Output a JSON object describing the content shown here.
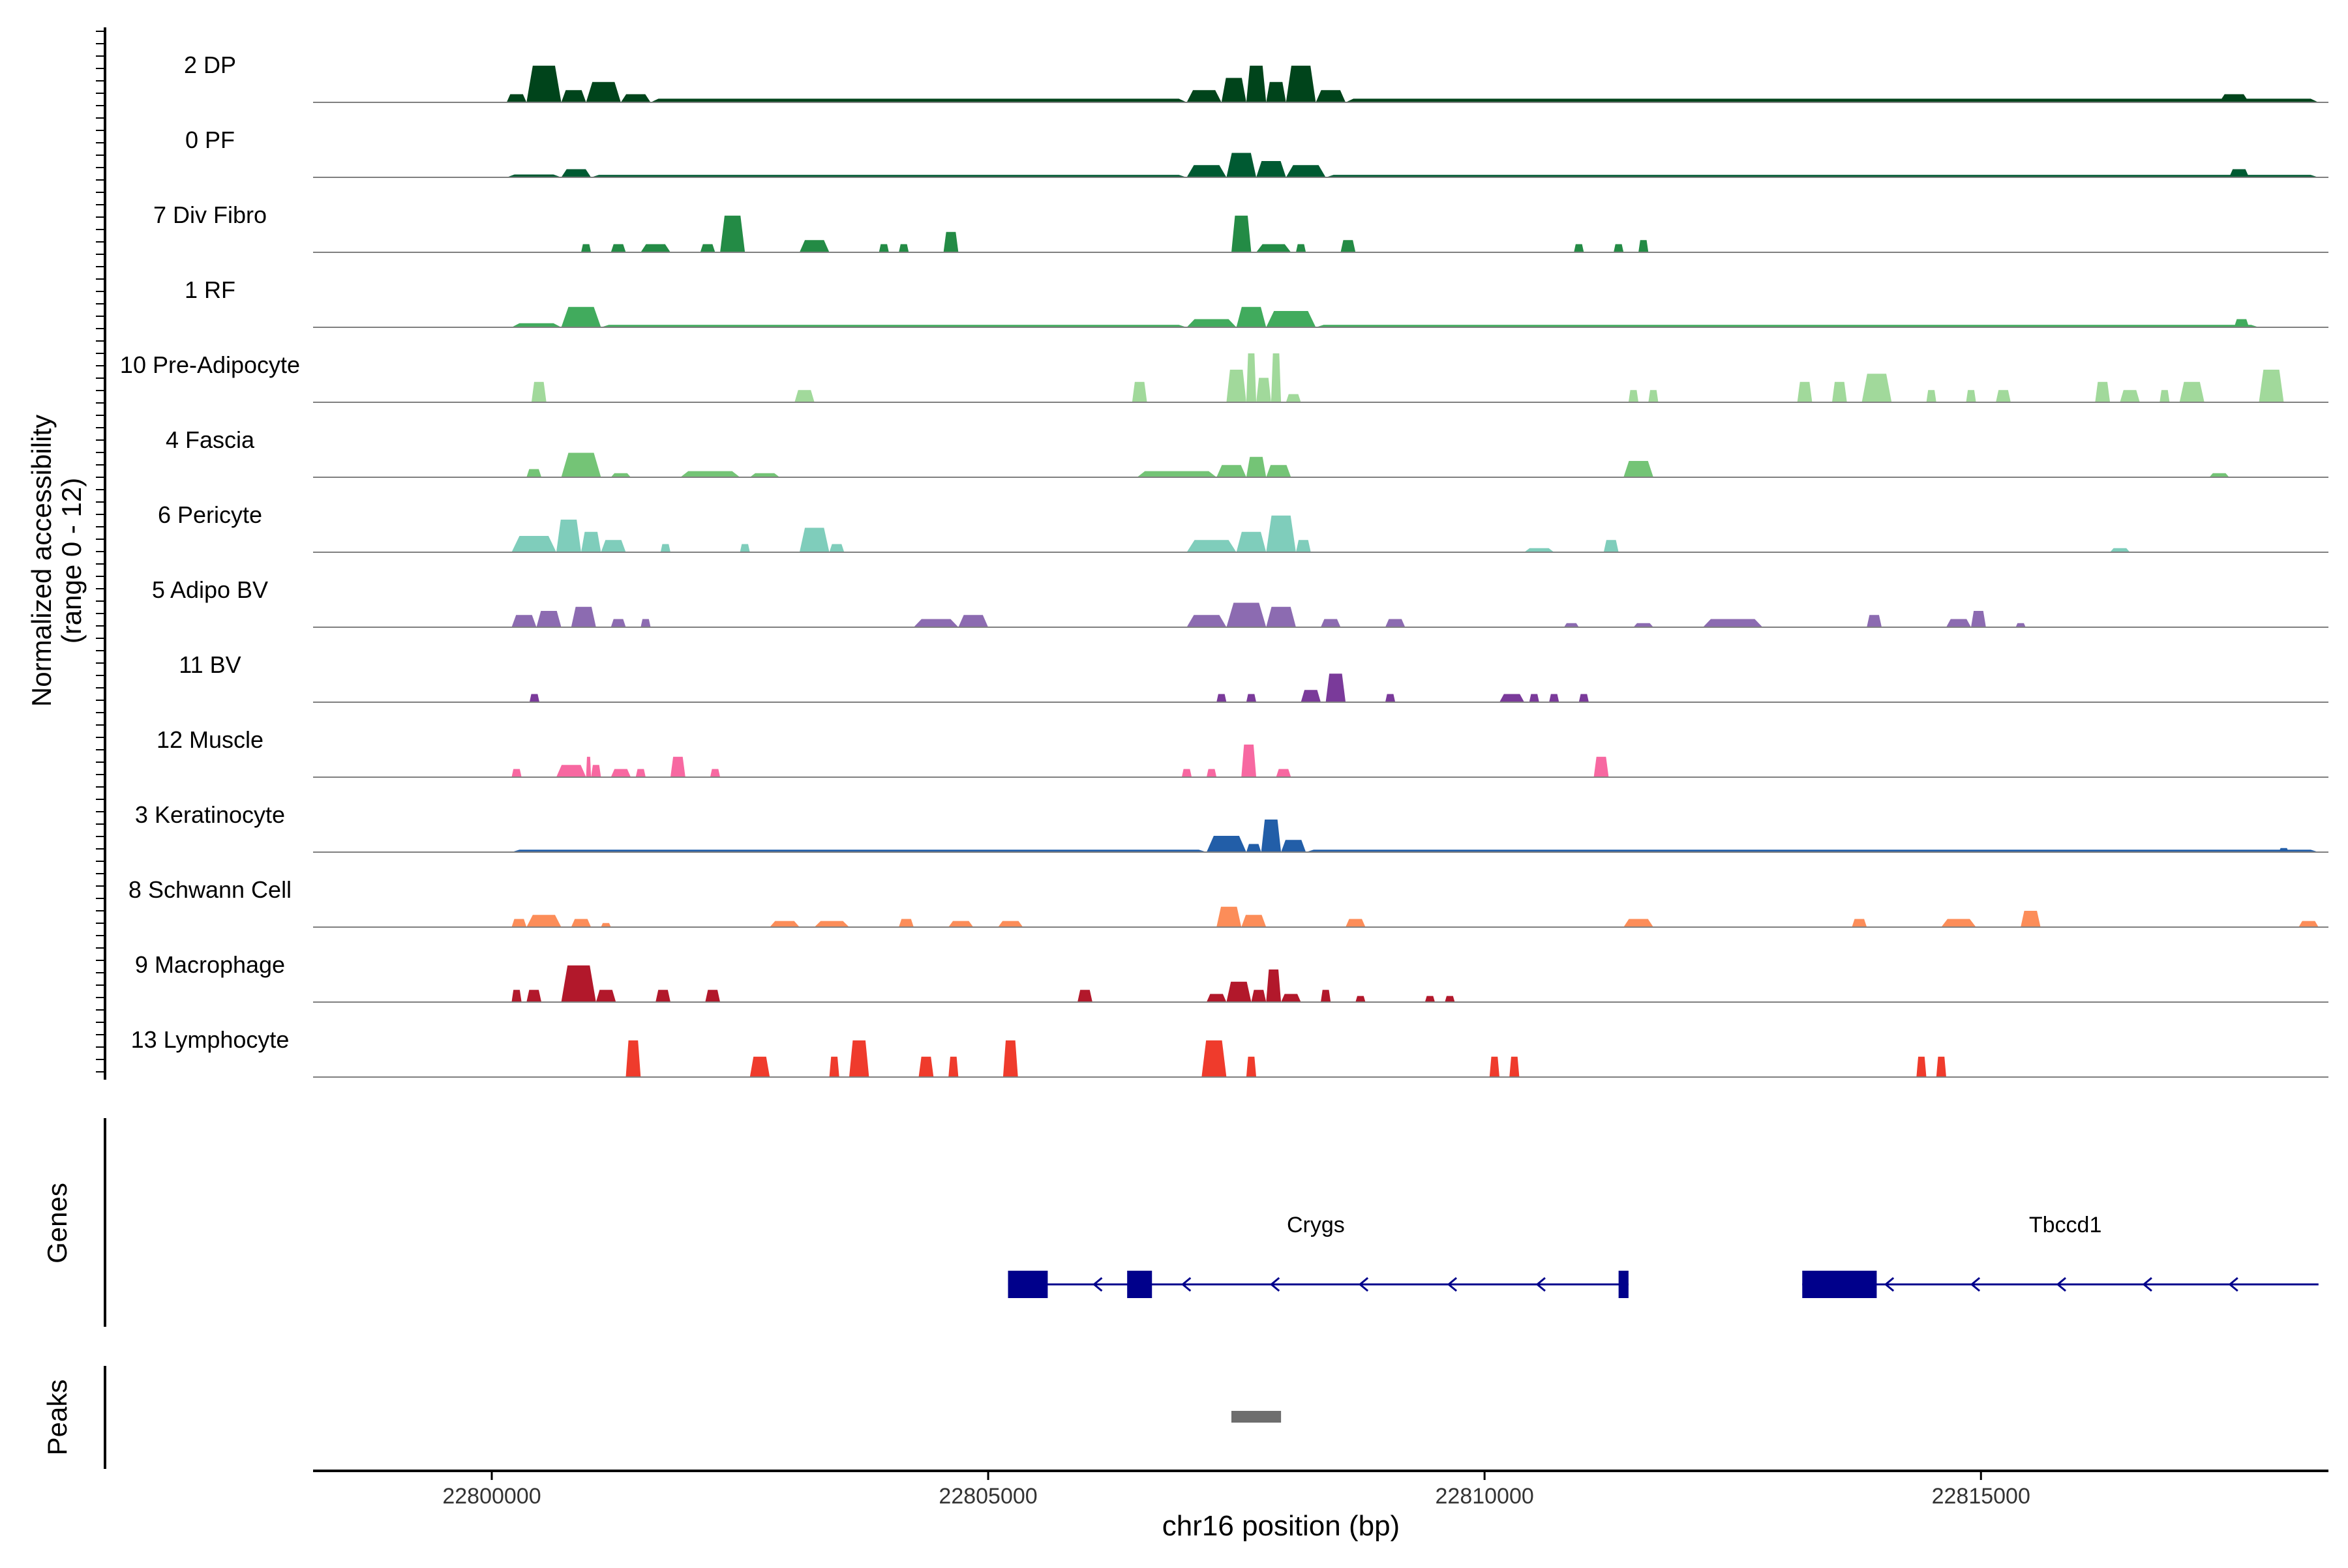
{
  "chart_data": {
    "type": "area",
    "title": "",
    "ylabel": "Normalized accessibility",
    "ylabel_range": "(range 0 - 12)",
    "yrange": [
      0,
      12
    ],
    "xlabel": "chr16 position (bp)",
    "xlim": [
      22798200,
      22818500
    ],
    "xticks": [
      22800000,
      22805000,
      22810000,
      22815000
    ],
    "xtick_labels": [
      "22800000",
      "22805000",
      "22810000",
      "22815000"
    ],
    "tracks": [
      {
        "name": "2 DP",
        "color": "#00441b",
        "peaks": [
          [
            22800150,
            22800350,
            2
          ],
          [
            22800350,
            22800700,
            9
          ],
          [
            22800700,
            22800950,
            3
          ],
          [
            22800950,
            22801300,
            5
          ],
          [
            22801300,
            22801600,
            2
          ],
          [
            22801600,
            22807000,
            0.9
          ],
          [
            22807000,
            22807350,
            3
          ],
          [
            22807350,
            22807600,
            6
          ],
          [
            22807600,
            22807800,
            9
          ],
          [
            22807800,
            22808000,
            5
          ],
          [
            22808000,
            22808300,
            9
          ],
          [
            22808300,
            22808600,
            3
          ],
          [
            22808600,
            22818400,
            0.9
          ],
          [
            22817400,
            22817700,
            2
          ]
        ]
      },
      {
        "name": "0 PF",
        "color": "#005a32",
        "peaks": [
          [
            22800150,
            22800700,
            0.7
          ],
          [
            22800700,
            22801000,
            2
          ],
          [
            22801000,
            22807000,
            0.6
          ],
          [
            22807000,
            22807400,
            3
          ],
          [
            22807400,
            22807700,
            6
          ],
          [
            22807700,
            22808000,
            4
          ],
          [
            22808000,
            22808400,
            3
          ],
          [
            22808400,
            22818400,
            0.6
          ],
          [
            22817500,
            22817700,
            2
          ]
        ]
      },
      {
        "name": "7 Div Fibro",
        "color": "#238b45",
        "peaks": [
          [
            22800900,
            22801000,
            2
          ],
          [
            22801200,
            22801350,
            2
          ],
          [
            22801500,
            22801800,
            2
          ],
          [
            22802100,
            22802250,
            2
          ],
          [
            22802300,
            22802550,
            9
          ],
          [
            22803100,
            22803400,
            3
          ],
          [
            22803900,
            22804000,
            2
          ],
          [
            22804100,
            22804200,
            2
          ],
          [
            22804550,
            22804700,
            5
          ],
          [
            22807450,
            22807650,
            9
          ],
          [
            22807700,
            22808050,
            2
          ],
          [
            22808100,
            22808200,
            2
          ],
          [
            22808550,
            22808700,
            3
          ],
          [
            22810900,
            22811000,
            2
          ],
          [
            22811300,
            22811400,
            2
          ],
          [
            22811550,
            22811650,
            3
          ]
        ]
      },
      {
        "name": "1 RF",
        "color": "#41ab5d",
        "peaks": [
          [
            22800200,
            22800700,
            1
          ],
          [
            22800700,
            22801100,
            5
          ],
          [
            22801100,
            22807000,
            0.6
          ],
          [
            22807000,
            22807500,
            2
          ],
          [
            22807500,
            22807800,
            5
          ],
          [
            22807800,
            22808300,
            4
          ],
          [
            22808300,
            22817800,
            0.6
          ],
          [
            22817550,
            22817700,
            2
          ]
        ]
      },
      {
        "name": "10 Pre-Adipocyte",
        "color": "#a1d99b",
        "peaks": [
          [
            22800400,
            22800550,
            5
          ],
          [
            22803050,
            22803250,
            3
          ],
          [
            22806450,
            22806600,
            5
          ],
          [
            22807400,
            22807600,
            8
          ],
          [
            22807600,
            22807700,
            12
          ],
          [
            22807700,
            22807850,
            6
          ],
          [
            22807850,
            22807950,
            12
          ],
          [
            22808000,
            22808150,
            2
          ],
          [
            22811450,
            22811550,
            3
          ],
          [
            22811650,
            22811750,
            3
          ],
          [
            22813150,
            22813300,
            5
          ],
          [
            22813500,
            22813650,
            5
          ],
          [
            22813800,
            22814100,
            7
          ],
          [
            22814450,
            22814550,
            3
          ],
          [
            22814850,
            22814950,
            3
          ],
          [
            22815150,
            22815300,
            3
          ],
          [
            22816150,
            22816300,
            5
          ],
          [
            22816400,
            22816600,
            3
          ],
          [
            22816800,
            22816900,
            3
          ],
          [
            22817000,
            22817250,
            5
          ],
          [
            22817800,
            22818050,
            8
          ]
        ]
      },
      {
        "name": "4 Fascia",
        "color": "#74c476",
        "peaks": [
          [
            22800350,
            22800500,
            2
          ],
          [
            22800700,
            22801100,
            6
          ],
          [
            22801200,
            22801400,
            1
          ],
          [
            22801900,
            22802500,
            1.5
          ],
          [
            22802600,
            22802900,
            1
          ],
          [
            22806500,
            22807300,
            1.5
          ],
          [
            22807300,
            22807600,
            3
          ],
          [
            22807600,
            22807800,
            5
          ],
          [
            22807800,
            22808050,
            3
          ],
          [
            22811400,
            22811700,
            4
          ],
          [
            22817300,
            22817500,
            1
          ]
        ]
      },
      {
        "name": "6 Pericyte",
        "color": "#7fcdbb",
        "peaks": [
          [
            22800200,
            22800650,
            4
          ],
          [
            22800650,
            22800900,
            8
          ],
          [
            22800900,
            22801100,
            5
          ],
          [
            22801100,
            22801350,
            3
          ],
          [
            22801700,
            22801800,
            2
          ],
          [
            22802500,
            22802600,
            2
          ],
          [
            22803100,
            22803400,
            6
          ],
          [
            22803400,
            22803550,
            2
          ],
          [
            22807000,
            22807500,
            3
          ],
          [
            22807500,
            22807800,
            5
          ],
          [
            22807800,
            22808100,
            9
          ],
          [
            22808100,
            22808250,
            3
          ],
          [
            22810400,
            22810700,
            1
          ],
          [
            22811200,
            22811350,
            3
          ],
          [
            22816300,
            22816500,
            1
          ]
        ]
      },
      {
        "name": "5 Adipo BV",
        "color": "#8c6bb1",
        "peaks": [
          [
            22800200,
            22800450,
            3
          ],
          [
            22800450,
            22800700,
            4
          ],
          [
            22800800,
            22801050,
            5
          ],
          [
            22801200,
            22801350,
            2
          ],
          [
            22801500,
            22801600,
            2
          ],
          [
            22804250,
            22804700,
            2
          ],
          [
            22804700,
            22805000,
            3
          ],
          [
            22807000,
            22807400,
            3
          ],
          [
            22807400,
            22807800,
            6
          ],
          [
            22807800,
            22808100,
            5
          ],
          [
            22808350,
            22808550,
            2
          ],
          [
            22809000,
            22809200,
            2
          ],
          [
            22810800,
            22810950,
            1
          ],
          [
            22811500,
            22811700,
            1
          ],
          [
            22812200,
            22812800,
            2
          ],
          [
            22813850,
            22814000,
            3
          ],
          [
            22814650,
            22814900,
            2
          ],
          [
            22814900,
            22815050,
            4
          ],
          [
            22815350,
            22815450,
            1
          ]
        ]
      },
      {
        "name": "11 BV",
        "color": "#7a3a9a",
        "peaks": [
          [
            22800380,
            22800480,
            2
          ],
          [
            22807300,
            22807400,
            2
          ],
          [
            22807600,
            22807700,
            2
          ],
          [
            22808150,
            22808350,
            3
          ],
          [
            22808400,
            22808600,
            7
          ],
          [
            22809000,
            22809100,
            2
          ],
          [
            22810150,
            22810400,
            2
          ],
          [
            22810450,
            22810550,
            2
          ],
          [
            22810650,
            22810750,
            2
          ],
          [
            22810950,
            22811050,
            2
          ]
        ]
      },
      {
        "name": "12 Muscle",
        "color": "#f768a1",
        "peaks": [
          [
            22800200,
            22800300,
            2
          ],
          [
            22800650,
            22800950,
            3
          ],
          [
            22800950,
            22801000,
            5
          ],
          [
            22801000,
            22801100,
            3
          ],
          [
            22801200,
            22801400,
            2
          ],
          [
            22801450,
            22801550,
            2
          ],
          [
            22801800,
            22801950,
            5
          ],
          [
            22802200,
            22802300,
            2
          ],
          [
            22806950,
            22807050,
            2
          ],
          [
            22807200,
            22807300,
            2
          ],
          [
            22807550,
            22807700,
            8
          ],
          [
            22807900,
            22808050,
            2
          ],
          [
            22811100,
            22811250,
            5
          ]
        ]
      },
      {
        "name": "3 Keratinocyte",
        "color": "#225ea8",
        "peaks": [
          [
            22800200,
            22807200,
            0.6
          ],
          [
            22807200,
            22807600,
            4
          ],
          [
            22807600,
            22807750,
            2
          ],
          [
            22807750,
            22807950,
            8
          ],
          [
            22807950,
            22808200,
            3
          ],
          [
            22808200,
            22818400,
            0.6
          ],
          [
            22818000,
            22818100,
            1
          ]
        ]
      },
      {
        "name": "8 Schwann Cell",
        "color": "#fc8d59",
        "peaks": [
          [
            22800200,
            22800350,
            2
          ],
          [
            22800350,
            22800700,
            3
          ],
          [
            22800800,
            22801000,
            2
          ],
          [
            22801100,
            22801200,
            1
          ],
          [
            22802800,
            22803100,
            1.5
          ],
          [
            22803250,
            22803600,
            1.5
          ],
          [
            22804100,
            22804250,
            2
          ],
          [
            22804600,
            22804850,
            1.5
          ],
          [
            22805100,
            22805350,
            1.5
          ],
          [
            22807300,
            22807550,
            5
          ],
          [
            22807550,
            22807800,
            3
          ],
          [
            22808600,
            22808800,
            2
          ],
          [
            22811400,
            22811700,
            2
          ],
          [
            22813700,
            22813850,
            2
          ],
          [
            22814600,
            22814950,
            2
          ],
          [
            22815400,
            22815600,
            4
          ],
          [
            22818200,
            22818400,
            1.5
          ]
        ]
      },
      {
        "name": "9 Macrophage",
        "color": "#b2182b",
        "peaks": [
          [
            22800200,
            22800300,
            3
          ],
          [
            22800350,
            22800500,
            3
          ],
          [
            22800700,
            22801050,
            9
          ],
          [
            22801050,
            22801250,
            3
          ],
          [
            22801650,
            22801800,
            3
          ],
          [
            22802150,
            22802300,
            3
          ],
          [
            22805900,
            22806050,
            3
          ],
          [
            22807200,
            22807400,
            2
          ],
          [
            22807400,
            22807650,
            5
          ],
          [
            22807650,
            22807800,
            3
          ],
          [
            22807800,
            22807950,
            8
          ],
          [
            22807950,
            22808150,
            2
          ],
          [
            22808350,
            22808450,
            3
          ],
          [
            22808700,
            22808800,
            1.5
          ],
          [
            22809400,
            22809500,
            1.5
          ],
          [
            22809600,
            22809700,
            1.5
          ]
        ]
      },
      {
        "name": "13 Lymphocyte",
        "color": "#ef3b2c",
        "peaks": [
          [
            22801350,
            22801500,
            9
          ],
          [
            22802600,
            22802800,
            5
          ],
          [
            22803400,
            22803500,
            5
          ],
          [
            22803600,
            22803800,
            9
          ],
          [
            22804300,
            22804450,
            5
          ],
          [
            22804600,
            22804700,
            5
          ],
          [
            22805150,
            22805300,
            9
          ],
          [
            22807150,
            22807400,
            9
          ],
          [
            22807600,
            22807700,
            5
          ],
          [
            22810050,
            22810150,
            5
          ],
          [
            22810250,
            22810350,
            5
          ],
          [
            22814350,
            22814450,
            5
          ],
          [
            22814550,
            22814650,
            5
          ]
        ]
      }
    ],
    "genes_label": "Genes",
    "peaks_label": "Peaks",
    "genes": [
      {
        "name": "Crygs",
        "start": 22805200,
        "end": 22811450,
        "strand": "-",
        "label_pos": 22808300,
        "exons": [
          [
            22805200,
            22805600
          ],
          [
            22806400,
            22806650
          ],
          [
            22811350,
            22811450
          ]
        ]
      },
      {
        "name": "Tbccd1",
        "start": 22813200,
        "end": 22818400,
        "strand": "-",
        "label_pos": 22815850,
        "exons": [
          [
            22813200,
            22813950
          ]
        ]
      }
    ],
    "peak_regions": [
      [
        22807450,
        22807950
      ]
    ],
    "colors": {
      "axis": "#000000",
      "baseline": "#7f7f7f",
      "gene": "#00008b",
      "peak": "#6e6e6e"
    }
  }
}
